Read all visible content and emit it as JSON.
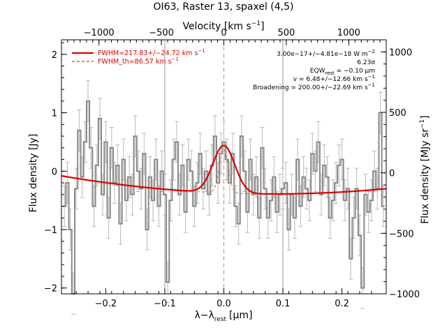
{
  "chart_data": {
    "type": "line",
    "title": "OI63, Raster 13, spaxel (4,5)",
    "xlabel": "λ−λ_rest [μm]",
    "xlabel_parts": {
      "lambda": "λ−λ",
      "sub": "rest",
      "unit": "[μm]"
    },
    "ylabel": "Flux density [Jy]",
    "top_xlabel": "Velocity [km s⁻¹]",
    "top_xlabel_parts": {
      "main": "Velocity [km s",
      "sup": "−1",
      "close": "]"
    },
    "right_ylabel": "Flux density [MJy sr⁻¹]",
    "right_ylabel_parts": {
      "main": "Flux density [MJy sr",
      "sup": "−1",
      "close": "]"
    },
    "xlim": [
      -0.275,
      0.275
    ],
    "ylim": [
      -2.1,
      2.25
    ],
    "top_xlim": [
      -1300,
      1300
    ],
    "right_ylim": [
      -1000,
      1100
    ],
    "x_ticks": [
      -0.2,
      -0.1,
      0.0,
      0.1,
      0.2
    ],
    "x_tick_labels": [
      "−0.2",
      "−0.1",
      "0.0",
      "0.1",
      "0.2"
    ],
    "y_ticks": [
      -2,
      -1,
      0,
      1,
      2
    ],
    "y_tick_labels": [
      "−2",
      "−1",
      "0",
      "1",
      "2"
    ],
    "top_ticks": [
      -1000,
      -500,
      0,
      500,
      1000
    ],
    "top_tick_labels": [
      "−1000",
      "−500",
      "0",
      "500",
      "1000"
    ],
    "right_ticks": [
      -1000,
      -500,
      0,
      500,
      1000
    ],
    "right_tick_labels": [
      "−1000",
      "−500",
      "0",
      "500",
      "1000"
    ],
    "vertical_lines": [
      -0.1,
      0.0,
      0.1
    ],
    "grid": false,
    "legend_placement": "top-left",
    "colors": {
      "data": "#888888",
      "errorbars": "#b8b8b8",
      "fit": "#dd0000",
      "fit_th": "#e07030"
    },
    "spectrum": {
      "name": "data",
      "x": [
        -0.27,
        -0.265,
        -0.26,
        -0.255,
        -0.25,
        -0.245,
        -0.24,
        -0.235,
        -0.23,
        -0.225,
        -0.22,
        -0.215,
        -0.21,
        -0.205,
        -0.2,
        -0.195,
        -0.19,
        -0.185,
        -0.18,
        -0.175,
        -0.17,
        -0.165,
        -0.16,
        -0.155,
        -0.15,
        -0.145,
        -0.14,
        -0.135,
        -0.13,
        -0.125,
        -0.12,
        -0.115,
        -0.11,
        -0.105,
        -0.1,
        -0.095,
        -0.09,
        -0.085,
        -0.08,
        -0.075,
        -0.07,
        -0.065,
        -0.06,
        -0.055,
        -0.05,
        -0.045,
        -0.04,
        -0.035,
        -0.03,
        -0.025,
        -0.02,
        -0.015,
        -0.01,
        -0.005,
        0.0,
        0.005,
        0.01,
        0.015,
        0.02,
        0.025,
        0.03,
        0.035,
        0.04,
        0.045,
        0.05,
        0.055,
        0.06,
        0.065,
        0.07,
        0.075,
        0.08,
        0.085,
        0.09,
        0.095,
        0.1,
        0.105,
        0.11,
        0.115,
        0.12,
        0.125,
        0.13,
        0.135,
        0.14,
        0.145,
        0.15,
        0.155,
        0.16,
        0.165,
        0.17,
        0.175,
        0.18,
        0.185,
        0.19,
        0.195,
        0.2,
        0.205,
        0.21,
        0.215,
        0.22,
        0.225,
        0.23,
        0.235,
        0.24,
        0.245,
        0.25,
        0.255,
        0.26,
        0.265,
        0.27
      ],
      "y": [
        -0.6,
        -0.2,
        -1.0,
        -2.1,
        -0.3,
        0.7,
        -0.1,
        0.5,
        1.2,
        0.4,
        -0.6,
        0.1,
        0.9,
        -0.4,
        0.5,
        -0.8,
        0.4,
        -0.2,
        0.1,
        -0.9,
        0.2,
        -0.5,
        -0.1,
        -0.4,
        0.6,
        0.0,
        -0.3,
        0.3,
        -1.0,
        -0.1,
        -0.5,
        0.2,
        -0.6,
        0.0,
        -0.4,
        -1.9,
        -0.5,
        0.2,
        0.5,
        -0.4,
        0.1,
        -0.7,
        0.2,
        0.0,
        -0.6,
        -0.2,
        0.3,
        -0.3,
        0.0,
        -0.4,
        0.1,
        0.6,
        -0.2,
        0.3,
        0.5,
        0.2,
        -0.2,
        0.3,
        -0.6,
        -0.9,
        0.6,
        0.0,
        -0.7,
        0.2,
        -0.4,
        -0.1,
        -0.8,
        0.4,
        -0.3,
        -0.8,
        -0.5,
        -0.1,
        -0.7,
        -0.4,
        -0.3,
        -0.2,
        -1.0,
        -0.4,
        -0.8,
        0.2,
        -0.6,
        -0.1,
        -0.3,
        -0.5,
        0.3,
        0.0,
        0.5,
        -0.4,
        0.1,
        -0.1,
        -0.8,
        -0.5,
        -0.2,
        0.1,
        0.2,
        -0.5,
        -0.3,
        -1.5,
        -0.8,
        -0.3,
        -1.1,
        -2.0,
        -0.4,
        -0.7,
        -0.5,
        0.0,
        -0.3,
        1.0,
        -0.6
      ],
      "err": 0.35
    },
    "fit_model": {
      "name": "FWHM=217.83+/−24.72 km s⁻¹",
      "continuum_y": [
        -0.08,
        -0.39,
        -0.3
      ],
      "continuum_x": [
        -0.275,
        0.09,
        0.275
      ],
      "peak": 0.44,
      "center": 0.0,
      "sigma": 0.0185
    },
    "fit_th_model": {
      "name": "FWHM_th=86.57 km s⁻¹",
      "peak": 0.36,
      "center": 0.0,
      "sigma": 0.0075
    }
  },
  "legend": {
    "fit_label": "FWHM=217.83+/−24.72 km s",
    "fit_label_sup": "−1",
    "th_label": "FWHM_th=86.57 km s",
    "th_label_sup": "−1"
  },
  "annotations": {
    "line1": "3.00e−17+/−4.81e−18 W m",
    "line1_sup": "−2",
    "line2": "6.23σ",
    "line3": "EQW",
    "line3_sub": "rest",
    "line3_tail": " = −0.10 μm",
    "line4": "v = 6.48+/−12.66 km s",
    "line4_sup": "−1",
    "line5": "Broadening = 200.00+/−22.69 km s",
    "line5_sup": "−1"
  }
}
